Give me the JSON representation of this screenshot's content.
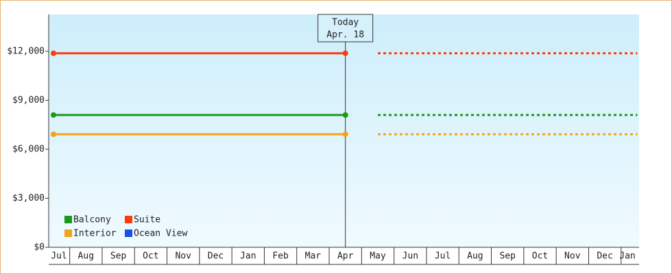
{
  "chart_data": {
    "type": "line",
    "categories": [
      "Jul",
      "Aug",
      "Sep",
      "Oct",
      "Nov",
      "Dec",
      "Jan",
      "Feb",
      "Mar",
      "Apr",
      "May",
      "Jun",
      "Jul",
      "Aug",
      "Sep",
      "Oct",
      "Nov",
      "Dec",
      "Jan"
    ],
    "series": [
      {
        "name": "Balcony",
        "color": "#1a9a1a",
        "values": [
          8100,
          8100,
          8100,
          8100,
          8100,
          8100,
          8100,
          8100,
          8100,
          8100,
          8100,
          8100,
          8100,
          8100,
          8100,
          8100,
          8100,
          8100,
          8100
        ]
      },
      {
        "name": "Suite",
        "color": "#ff3b0a",
        "values": [
          11880,
          11880,
          11880,
          11880,
          11880,
          11880,
          11880,
          11880,
          11880,
          11880,
          11880,
          11880,
          11880,
          11880,
          11880,
          11880,
          11880,
          11880,
          11880
        ]
      },
      {
        "name": "Interior",
        "color": "#f2a31c",
        "values": [
          6920,
          6920,
          6920,
          6920,
          6920,
          6920,
          6920,
          6920,
          6920,
          6920,
          6920,
          6920,
          6920,
          6920,
          6920,
          6920,
          6920,
          6920,
          6920
        ]
      },
      {
        "name": "Ocean View",
        "color": "#1450f0",
        "values": [
          null,
          null,
          null,
          null,
          null,
          null,
          null,
          null,
          null,
          null,
          null,
          null,
          null,
          null,
          null,
          null,
          null,
          null,
          null
        ]
      }
    ],
    "today": {
      "text": "Today",
      "date": "Apr. 18",
      "category": "Apr"
    },
    "ylim": [
      0,
      14260
    ],
    "yticks": [
      {
        "value": 0,
        "label": "$0"
      },
      {
        "value": 3000,
        "label": "$3,000"
      },
      {
        "value": 6000,
        "label": "$6,000"
      },
      {
        "value": 9000,
        "label": "$9,000"
      },
      {
        "value": 12000,
        "label": "$12,000"
      }
    ]
  }
}
